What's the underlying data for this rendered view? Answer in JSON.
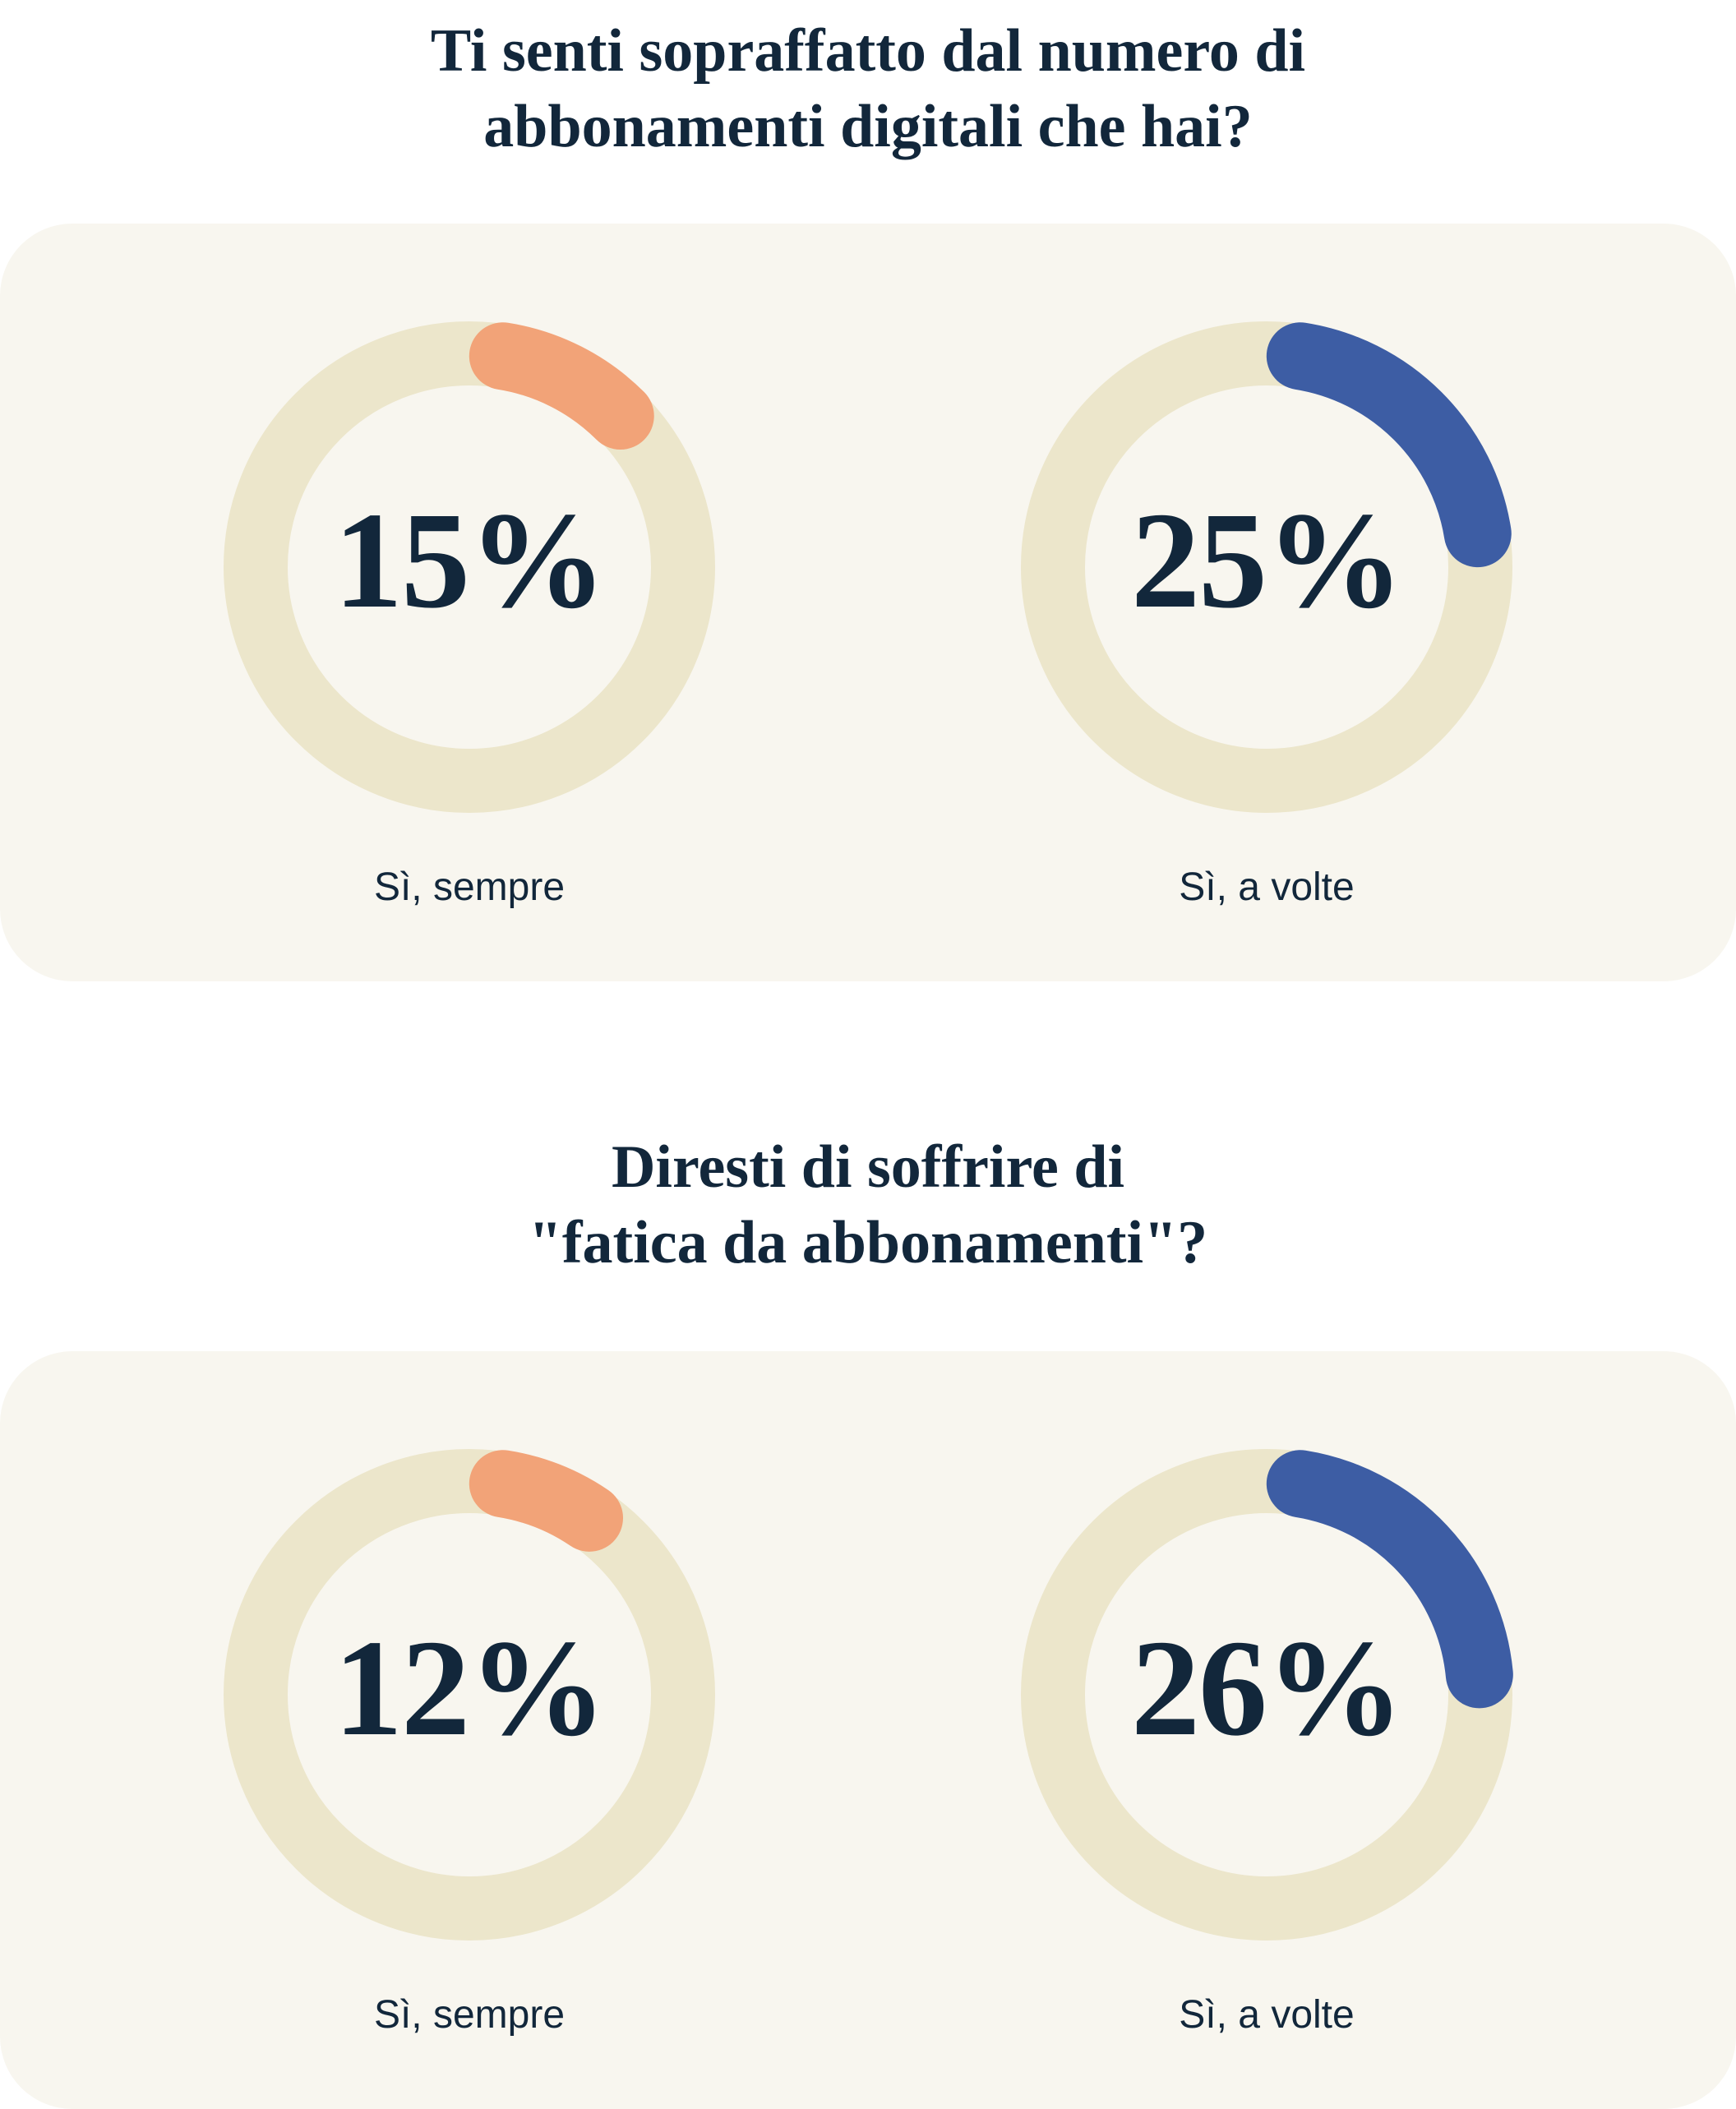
{
  "colors": {
    "page_bg": "#FFFFFF",
    "card_bg": "#F8F6EF",
    "track": "#ECE6CB",
    "orange": "#F2A378",
    "blue": "#3D5DA4",
    "navy": "#12273B"
  },
  "sections": [
    {
      "title_lines": [
        "Ti senti sopraffatto dal numero di",
        "abbonamenti digitali che hai?"
      ],
      "charts": [
        {
          "value": 15,
          "display": "15%",
          "label": "Sì, sempre",
          "color_key": "orange"
        },
        {
          "value": 25,
          "display": "25%",
          "label": "Sì, a volte",
          "color_key": "blue"
        }
      ]
    },
    {
      "title_lines": [
        "Diresti di soffrire di",
        "\"fatica da abbonamenti\"?"
      ],
      "charts": [
        {
          "value": 12,
          "display": "12%",
          "label": "Sì, sempre",
          "color_key": "orange"
        },
        {
          "value": 26,
          "display": "26%",
          "label": "Sì, a volte",
          "color_key": "blue"
        }
      ]
    }
  ],
  "chart_data": [
    {
      "type": "donut",
      "title": "Ti senti sopraffatto dal numero di abbonamenti digitali che hai?",
      "gauges": [
        {
          "label": "Sì, sempre",
          "value_pct": 15,
          "arc_color": "#F2A378",
          "track_color": "#ECE6CB"
        },
        {
          "label": "Sì, a volte",
          "value_pct": 25,
          "arc_color": "#3D5DA4",
          "track_color": "#ECE6CB"
        }
      ],
      "value_range": [
        0,
        100
      ],
      "start_angle_deg": 0,
      "direction": "clockwise",
      "legend_position": "below-each-gauge"
    },
    {
      "type": "donut",
      "title": "Diresti di soffrire di \"fatica da abbonamenti\"?",
      "gauges": [
        {
          "label": "Sì, sempre",
          "value_pct": 12,
          "arc_color": "#F2A378",
          "track_color": "#ECE6CB"
        },
        {
          "label": "Sì, a volte",
          "value_pct": 26,
          "arc_color": "#3D5DA4",
          "track_color": "#ECE6CB"
        }
      ],
      "value_range": [
        0,
        100
      ],
      "start_angle_deg": 0,
      "direction": "clockwise",
      "legend_position": "below-each-gauge"
    }
  ]
}
